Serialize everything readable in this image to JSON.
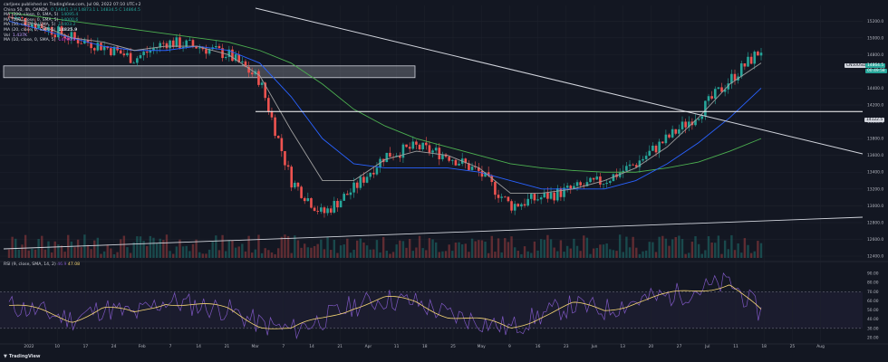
{
  "header": {
    "published": "carljoex published on TradingView.com, Jul 08, 2022 07:10 UTC+2"
  },
  "legend": [
    {
      "label": "China 50, 4h, OANDA",
      "value": "O 14841.3 H 14873.1 L 14834.5 C 14864.5"
    },
    {
      "label": "MA (200, close, 0, SMA, 5)",
      "value": "14095.4"
    },
    {
      "label": "MA (100, close, 0, SMA, 5)",
      "value": "14000.6"
    },
    {
      "label": "MA (50, close, 0, SMA, 5)",
      "value": "14403.2"
    },
    {
      "label": "MA (20, close, 0, SMA, 5)",
      "value": "14825.9"
    },
    {
      "label": "Vol",
      "value": "1.437K"
    },
    {
      "label": "MA (10, close, 0, SMA, 5)",
      "value": "14790.8"
    }
  ],
  "rsi_legend": {
    "label": "RSI (9, close, SMA, 14, 2)",
    "value1": "46.9",
    "value2": "47.08"
  },
  "price_badges": {
    "symbol": "CN50USD",
    "last_price": "14864.5",
    "countdown": "00:49:58",
    "line_price": "14122.5"
  },
  "colors": {
    "up": "#26a69a",
    "down": "#ef5350",
    "ma200": "#4caf50",
    "ma100": "#2962ff",
    "ma50": "#9e9e9e",
    "rsi": "#7e57c2",
    "rsi_ma": "#f7d774",
    "background": "#131722"
  },
  "footer": {
    "brand": "TradingView"
  },
  "chart_data": {
    "type": "line",
    "description": "China 50 candlestick price chart, 4h, with moving averages, volume and RSI pane",
    "price_axis": {
      "ticks": [
        "15200.0",
        "15000.0",
        "14800.0",
        "14600.0",
        "14400.0",
        "14200.0",
        "14000.0",
        "13800.0",
        "13600.0",
        "13400.0",
        "13200.0",
        "13000.0",
        "12800.0",
        "12600.0",
        "12400.0"
      ]
    },
    "rsi_axis": {
      "ticks": [
        "90.00",
        "80.00",
        "70.00",
        "60.00",
        "50.00",
        "40.00",
        "30.00",
        "20.00"
      ]
    },
    "time_axis": {
      "ticks": [
        "2022",
        "10",
        "17",
        "24",
        "Feb",
        "7",
        "14",
        "21",
        "Mar",
        "7",
        "14",
        "21",
        "Apr",
        "11",
        "18",
        "25",
        "May",
        "9",
        "16",
        "23",
        "Jun",
        "13",
        "20",
        "27",
        "Jul",
        "11",
        "18",
        "25",
        "Aug"
      ]
    },
    "series": [
      {
        "name": "China 50, 4h, OANDA",
        "x": [
          "2022",
          "10",
          "17",
          "24",
          "Feb",
          "7",
          "14",
          "21",
          "Mar",
          "7",
          "14",
          "21",
          "Apr",
          "11",
          "18",
          "25",
          "May",
          "9",
          "16",
          "23",
          "Jun",
          "13",
          "20",
          "27",
          "Jul"
        ],
        "values": [
          15250,
          15150,
          15000,
          14900,
          14750,
          14950,
          14900,
          14800,
          14500,
          13300,
          12900,
          13200,
          13600,
          13700,
          13600,
          13400,
          13000,
          13100,
          13200,
          13300,
          13500,
          13800,
          14100,
          14500,
          14860
        ]
      },
      {
        "name": "MA (200, close, 0, SMA, 5)",
        "values": [
          15300,
          15250,
          15200,
          15150,
          15100,
          15050,
          15000,
          14950,
          14850,
          14700,
          14450,
          14150,
          13950,
          13800,
          13700,
          13600,
          13500,
          13450,
          13420,
          13400,
          13400,
          13450,
          13520,
          13650,
          13800
        ]
      },
      {
        "name": "MA (100, close, 0, SMA, 5)",
        "values": [
          15200,
          15100,
          15000,
          14900,
          14850,
          14850,
          14900,
          14850,
          14700,
          14300,
          13800,
          13500,
          13450,
          13450,
          13450,
          13400,
          13300,
          13200,
          13200,
          13200,
          13300,
          13500,
          13750,
          14050,
          14400
        ]
      },
      {
        "name": "MA (50, close, 0, SMA, 5)",
        "values": [
          15250,
          15150,
          15000,
          14950,
          14850,
          14900,
          14900,
          14800,
          14550,
          13900,
          13300,
          13300,
          13550,
          13650,
          13600,
          13450,
          13150,
          13150,
          13200,
          13300,
          13450,
          13700,
          14050,
          14450,
          14700
        ]
      },
      {
        "name": "RSI",
        "values": [
          55,
          48,
          40,
          52,
          45,
          60,
          55,
          50,
          35,
          28,
          40,
          55,
          62,
          58,
          45,
          38,
          30,
          45,
          55,
          50,
          60,
          65,
          72,
          80,
          47
        ]
      }
    ],
    "horizontal_level": 14122.5,
    "resistance_zone": [
      14500,
      14580
    ],
    "ylim": [
      12400,
      15300
    ],
    "rsi_levels": [
      30,
      70
    ]
  }
}
